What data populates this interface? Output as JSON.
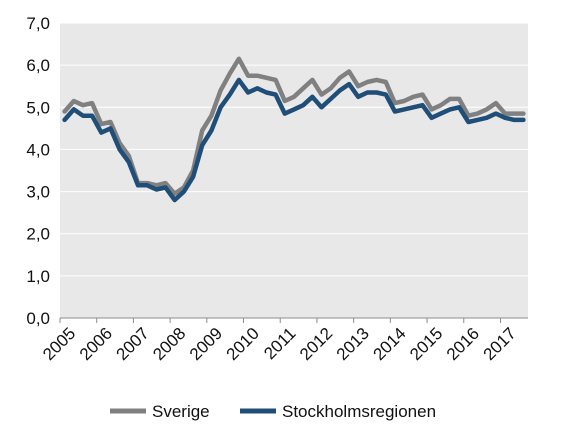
{
  "chart_data": {
    "type": "line",
    "title": "",
    "xlabel": "",
    "ylabel": "",
    "ylim": [
      0,
      7
    ],
    "y_ticks": [
      "0,0",
      "1,0",
      "2,0",
      "3,0",
      "4,0",
      "5,0",
      "6,0",
      "7,0"
    ],
    "x_ticks": [
      "2005",
      "2006",
      "2007",
      "2008",
      "2009",
      "2010",
      "2011",
      "2012",
      "2013",
      "2014",
      "2015",
      "2016",
      "2017"
    ],
    "grid": "horizontal",
    "legend_position": "bottom",
    "background_color": "#e8e8e8",
    "x": [
      "2005 Q1",
      "2005 Q2",
      "2005 Q3",
      "2005 Q4",
      "2006 Q1",
      "2006 Q2",
      "2006 Q3",
      "2006 Q4",
      "2007 Q1",
      "2007 Q2",
      "2007 Q3",
      "2007 Q4",
      "2008 Q1",
      "2008 Q2",
      "2008 Q3",
      "2008 Q4",
      "2009 Q1",
      "2009 Q2",
      "2009 Q3",
      "2009 Q4",
      "2010 Q1",
      "2010 Q2",
      "2010 Q3",
      "2010 Q4",
      "2011 Q1",
      "2011 Q2",
      "2011 Q3",
      "2011 Q4",
      "2012 Q1",
      "2012 Q2",
      "2012 Q3",
      "2012 Q4",
      "2013 Q1",
      "2013 Q2",
      "2013 Q3",
      "2013 Q4",
      "2014 Q1",
      "2014 Q2",
      "2014 Q3",
      "2014 Q4",
      "2015 Q1",
      "2015 Q2",
      "2015 Q3",
      "2015 Q4",
      "2016 Q1",
      "2016 Q2",
      "2016 Q3",
      "2016 Q4",
      "2017 Q1",
      "2017 Q2",
      "2017 Q3"
    ],
    "series": [
      {
        "name": "Sverige",
        "color": "#808080",
        "values": [
          4.9,
          5.15,
          5.05,
          5.1,
          4.6,
          4.65,
          4.15,
          3.85,
          3.2,
          3.2,
          3.15,
          3.2,
          2.95,
          3.1,
          3.5,
          4.45,
          4.8,
          5.4,
          5.8,
          6.15,
          5.75,
          5.75,
          5.7,
          5.65,
          5.15,
          5.25,
          5.45,
          5.65,
          5.3,
          5.45,
          5.7,
          5.85,
          5.5,
          5.6,
          5.65,
          5.6,
          5.1,
          5.15,
          5.25,
          5.3,
          4.95,
          5.05,
          5.2,
          5.2,
          4.8,
          4.85,
          4.95,
          5.1,
          4.85,
          4.85,
          4.85
        ]
      },
      {
        "name": "Stockholmsregionen",
        "color": "#1f4e79",
        "values": [
          4.7,
          4.95,
          4.8,
          4.8,
          4.4,
          4.5,
          4.0,
          3.7,
          3.15,
          3.15,
          3.05,
          3.1,
          2.8,
          3.0,
          3.35,
          4.1,
          4.45,
          5.0,
          5.3,
          5.65,
          5.35,
          5.45,
          5.35,
          5.3,
          4.85,
          4.95,
          5.05,
          5.25,
          5.0,
          5.2,
          5.4,
          5.55,
          5.25,
          5.35,
          5.35,
          5.3,
          4.9,
          4.95,
          5.0,
          5.05,
          4.75,
          4.85,
          4.95,
          5.0,
          4.65,
          4.7,
          4.75,
          4.85,
          4.75,
          4.7,
          4.7
        ]
      }
    ]
  }
}
